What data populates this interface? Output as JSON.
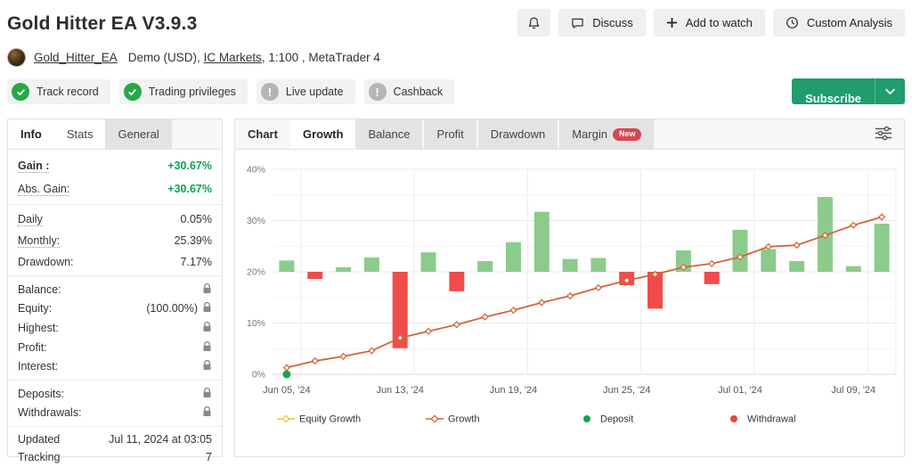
{
  "header": {
    "title": "Gold Hitter EA V3.9.3",
    "discuss_label": "Discuss",
    "add_to_watch_label": "Add to watch",
    "custom_analysis_label": "Custom Analysis"
  },
  "account": {
    "username": "Gold_Hitter_EA",
    "type": "Demo (USD),",
    "broker": "IC Markets",
    "suffix": ", 1:100 , MetaTrader 4"
  },
  "verification": {
    "badges": [
      {
        "label": "Track record",
        "status": "verified"
      },
      {
        "label": "Trading privileges",
        "status": "verified"
      },
      {
        "label": "Live update",
        "status": "inactive"
      },
      {
        "label": "Cashback",
        "status": "inactive"
      }
    ],
    "subscribe_label": "Subscribe"
  },
  "sidebar": {
    "tabs": [
      {
        "label": "Info",
        "active": true
      },
      {
        "label": "Stats",
        "active": false
      },
      {
        "label": "General",
        "active": false
      }
    ],
    "groups": [
      {
        "rows": [
          {
            "label": "Gain :",
            "value": "+30.67%",
            "green": true,
            "bold": true,
            "dotted": true
          },
          {
            "label": "Abs. Gain:",
            "value": "+30.67%",
            "green": true,
            "dotted": true
          }
        ]
      },
      {
        "rows": [
          {
            "label": "Daily",
            "value": "0.05%",
            "dotted": true
          },
          {
            "label": "Monthly:",
            "value": "25.39%",
            "dotted": true
          },
          {
            "label": "Drawdown:",
            "value": "7.17%"
          }
        ]
      },
      {
        "rows": [
          {
            "label": "Balance:",
            "locked": true
          },
          {
            "label": "Equity:",
            "value": "(100.00%)",
            "locked": true
          },
          {
            "label": "Highest:",
            "locked": true
          },
          {
            "label": "Profit:",
            "locked": true
          },
          {
            "label": "Interest:",
            "locked": true
          }
        ]
      },
      {
        "rows": [
          {
            "label": "Deposits:",
            "locked": true
          },
          {
            "label": "Withdrawals:",
            "locked": true
          }
        ]
      },
      {
        "rows": [
          {
            "label": "Updated",
            "value": "Jul 11, 2024 at 03:05"
          },
          {
            "label": "Tracking",
            "value": "7"
          }
        ]
      }
    ]
  },
  "chart_panel": {
    "section_label": "Chart",
    "tabs": [
      {
        "label": "Growth",
        "active": true
      },
      {
        "label": "Balance",
        "active": false
      },
      {
        "label": "Profit",
        "active": false
      },
      {
        "label": "Drawdown",
        "active": false
      },
      {
        "label": "Margin",
        "active": false,
        "badge": "New"
      }
    ]
  },
  "chart_data": {
    "type": "bar",
    "title": "Growth",
    "ylim": [
      0,
      40
    ],
    "y_ticks": [
      0,
      10,
      20,
      30,
      40
    ],
    "y_tick_suffix": "%",
    "num_days": 22,
    "x_labels": [
      "Jun 05, '24",
      "Jun 13, '24",
      "Jun 19, '24",
      "Jun 25, '24",
      "Jul 01, '24",
      "Jul 09, '24"
    ],
    "x_label_day_indices": [
      0,
      4,
      8,
      12,
      16,
      20
    ],
    "bar_baseline_pct": 20,
    "series": [
      {
        "name": "Daily gain bars",
        "type": "bar",
        "values": [
          2.2,
          -1.4,
          0.9,
          2.8,
          -14.9,
          3.8,
          -3.8,
          2.1,
          5.8,
          11.7,
          2.5,
          2.7,
          -2.6,
          -7.2,
          4.2,
          -2.4,
          8.2,
          4.4,
          2.1,
          14.6,
          1.1,
          9.4
        ],
        "positive_color": "#8ccb8c",
        "negative_color": "#f04c4c"
      },
      {
        "name": "Growth",
        "type": "line",
        "values": [
          1.3,
          2.6,
          3.5,
          4.6,
          7.1,
          8.4,
          9.7,
          11.2,
          12.5,
          14.0,
          15.3,
          16.9,
          18.3,
          19.5,
          20.9,
          21.6,
          22.9,
          24.9,
          25.2,
          27.1,
          29.1,
          30.7
        ],
        "color": "#d2643a"
      }
    ],
    "deposit_points": [
      {
        "day_index": 0,
        "value": 0
      }
    ],
    "withdrawal_points": [],
    "legend": [
      {
        "label": "Equity Growth",
        "marker": "line-diamond",
        "color": "#e6c431"
      },
      {
        "label": "Growth",
        "marker": "line-diamond",
        "color": "#e0563f"
      },
      {
        "label": "Deposit",
        "marker": "dot",
        "color": "#18a44c"
      },
      {
        "label": "Withdrawal",
        "marker": "dot",
        "color": "#e8483f"
      }
    ],
    "grid": true,
    "legend_position": "bottom"
  }
}
